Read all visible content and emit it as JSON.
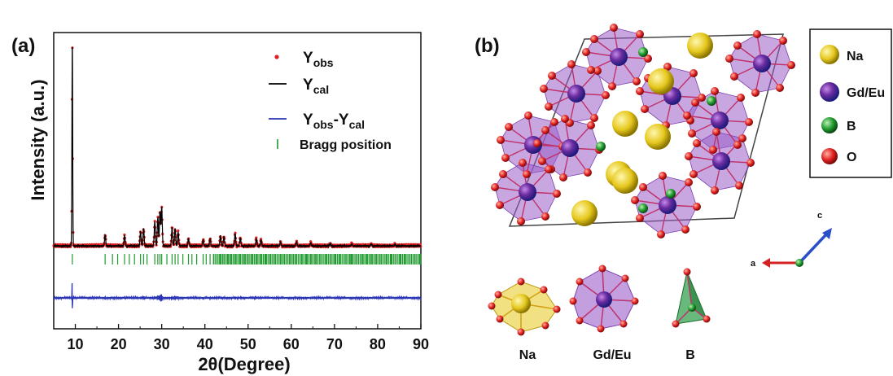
{
  "panel_a": {
    "label": "(a)",
    "ylabel": "Intensity (a.u.)",
    "xlabel": "2θ(Degree)"
  },
  "panel_b": {
    "label": "(b)",
    "legend": [
      {
        "name": "Na",
        "color": "#e6c81e"
      },
      {
        "name": "Gd/Eu",
        "color": "#7a2fb0"
      },
      {
        "name": "B",
        "color": "#1f9a2e"
      },
      {
        "name": "O",
        "color": "#e02020"
      }
    ],
    "axes": {
      "a": "a",
      "c": "c"
    },
    "polyhedra": [
      {
        "name": "Na",
        "color": "#e6c81e"
      },
      {
        "name": "Gd/Eu",
        "color": "#9b5fc9"
      },
      {
        "name": "B",
        "color": "#2a9a45"
      }
    ]
  },
  "colors": {
    "observed": "#e02020",
    "calculated": "#000000",
    "difference": "#2a35b5",
    "bragg": "#1f9a2e",
    "na": "#e6c81e",
    "gd_eu": "#7a2fb0",
    "b": "#1f9a2e",
    "o": "#e02020"
  },
  "chart_data": {
    "type": "line",
    "xlabel": "2θ(Degree)",
    "ylabel": "Intensity (a.u.)",
    "xlim": [
      5,
      90
    ],
    "xticks": [
      10,
      20,
      30,
      40,
      50,
      60,
      70,
      80,
      90
    ],
    "yticks_shown": false,
    "baseline": 0.0,
    "peaks": [
      [
        9.3,
        1.0
      ],
      [
        16.9,
        0.055
      ],
      [
        21.4,
        0.05
      ],
      [
        25.1,
        0.07
      ],
      [
        25.8,
        0.085
      ],
      [
        28.4,
        0.12
      ],
      [
        29.1,
        0.14
      ],
      [
        29.6,
        0.17
      ],
      [
        30.0,
        0.19
      ],
      [
        32.4,
        0.09
      ],
      [
        33.1,
        0.085
      ],
      [
        33.8,
        0.07
      ],
      [
        36.2,
        0.035
      ],
      [
        39.6,
        0.03
      ],
      [
        41.2,
        0.035
      ],
      [
        43.6,
        0.05
      ],
      [
        44.4,
        0.045
      ],
      [
        47.0,
        0.06
      ],
      [
        48.2,
        0.04
      ],
      [
        51.9,
        0.035
      ],
      [
        53.0,
        0.03
      ],
      [
        57.5,
        0.02
      ],
      [
        61.2,
        0.02
      ],
      [
        64.5,
        0.015
      ],
      [
        69.0,
        0.012
      ],
      [
        74.0,
        0.01
      ],
      [
        78.5,
        0.01
      ],
      [
        84.0,
        0.008
      ]
    ],
    "bragg_positions": [
      9.3,
      16.9,
      18.6,
      19.8,
      21.4,
      22.5,
      23.7,
      25.1,
      25.8,
      26.6,
      28.4,
      29.1,
      29.6,
      30.0,
      31.2,
      32.4,
      33.1,
      33.8,
      34.9,
      36.2,
      37.0,
      38.1,
      39.6,
      40.3,
      41.2,
      42.0,
      43.6,
      44.4,
      45.3,
      46.1,
      47.0,
      48.2,
      49.1,
      50.0,
      51.0,
      51.9,
      53.0,
      54.1,
      55.2,
      56.3,
      57.5,
      58.4,
      59.6,
      60.5,
      61.2,
      62.4,
      63.5,
      64.5,
      65.7,
      66.8,
      68.0,
      69.0,
      70.2,
      71.3,
      72.5,
      73.6,
      74.0,
      75.2,
      76.4,
      77.5,
      78.5,
      79.7,
      80.8,
      82.0,
      83.1,
      84.0,
      85.2,
      86.3,
      87.5,
      88.6,
      89.7
    ],
    "difference_spike": [
      9.3,
      0.08
    ],
    "series": [
      {
        "name": "Yobs",
        "color": "#e02020",
        "marker": "dot"
      },
      {
        "name": "Ycal",
        "color": "#000000",
        "marker": "line"
      },
      {
        "name": "Yobs-Ycal",
        "color": "#2a35b5",
        "marker": "line"
      },
      {
        "name": "Bragg position",
        "color": "#1f9a2e",
        "marker": "tick"
      }
    ],
    "legend_position": "top-right"
  }
}
